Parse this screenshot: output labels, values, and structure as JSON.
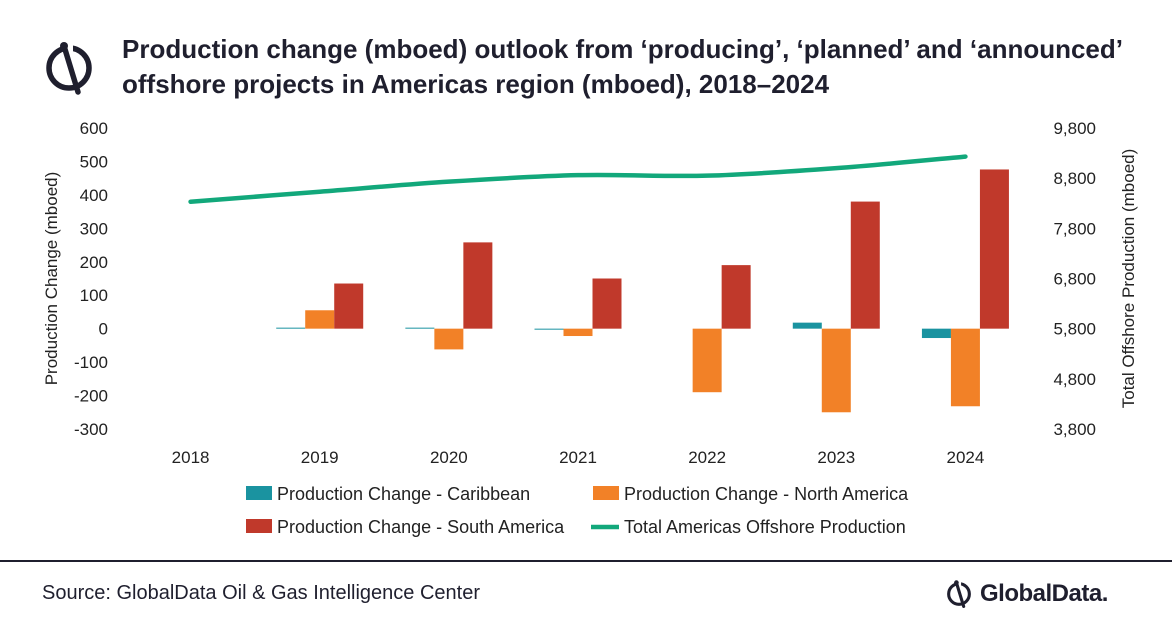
{
  "title": "Production change (mboed) outlook from ‘producing’, ‘planned’ and ‘announced’ offshore projects in Americas region (mboed), 2018–2024",
  "source": "Source: GlobalData Oil & Gas Intelligence Center",
  "brand": "GlobalData.",
  "colors": {
    "caribbean": "#1a93a0",
    "north_america": "#f28127",
    "south_america": "#c0392b",
    "total": "#12a87b",
    "text_dark": "#1f1f2e"
  },
  "chart_data": {
    "type": "bar",
    "categories": [
      "2018",
      "2019",
      "2020",
      "2021",
      "2022",
      "2023",
      "2024"
    ],
    "ylabel": "Production Change (mboed)",
    "y2label": "Total Offshore Production (mboed)",
    "ylim": [
      -300,
      600
    ],
    "y_ticks": [
      "600",
      "500",
      "400",
      "300",
      "200",
      "100",
      "0",
      "-100",
      "-200",
      "-300"
    ],
    "y2lim": [
      3800,
      9800
    ],
    "y2_ticks": [
      "9,800",
      "8,800",
      "7,800",
      "6,800",
      "5,800",
      "4,800",
      "3,800"
    ],
    "grid": false,
    "legend_position": "bottom",
    "series": [
      {
        "name": "Production Change - Caribbean",
        "kind": "bar",
        "color_key": "caribbean",
        "values": [
          0,
          3,
          3,
          -3,
          0,
          18,
          -28
        ]
      },
      {
        "name": "Production Change -  North America",
        "kind": "bar",
        "color_key": "north_america",
        "values": [
          0,
          55,
          -62,
          -22,
          -190,
          -250,
          -232
        ]
      },
      {
        "name": "Production Change - South America",
        "kind": "bar",
        "color_key": "south_america",
        "values": [
          0,
          135,
          258,
          150,
          190,
          380,
          476
        ]
      },
      {
        "name": "Total Americas Offshore Production",
        "kind": "line",
        "axis": "right",
        "color_key": "total",
        "values": [
          8330,
          8530,
          8730,
          8860,
          8850,
          9000,
          9230
        ]
      }
    ]
  }
}
